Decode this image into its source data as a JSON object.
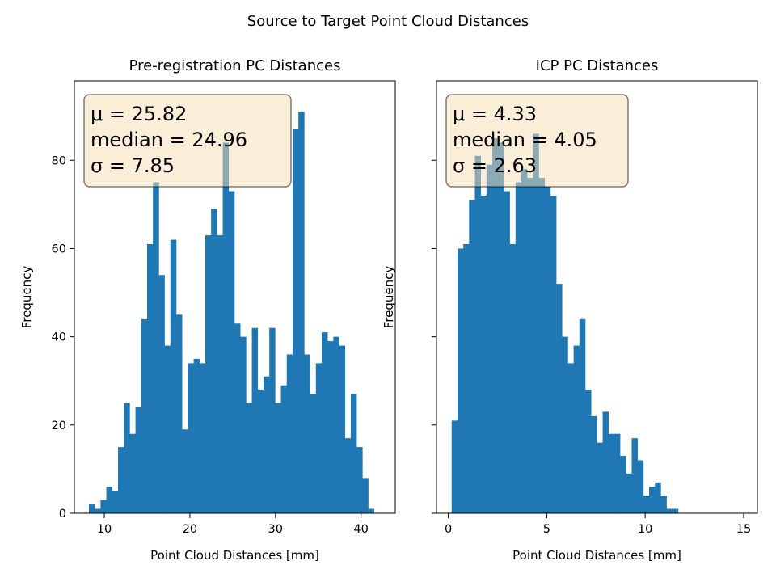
{
  "figure": {
    "suptitle": "Source to Target Point Cloud Distances"
  },
  "colors": {
    "bar": "#1f77b4",
    "stats_box_fill": "#f5deb3",
    "stats_box_edge": "#000000",
    "axes": "#000000",
    "background": "#ffffff"
  },
  "chart_data": [
    {
      "type": "bar",
      "title": "Pre-registration PC Distances",
      "xlabel": "Point Cloud Distances [mm]",
      "ylabel": "Frequency",
      "xlim": [
        6.5,
        44.0
      ],
      "ylim": [
        0,
        98
      ],
      "xticks": [
        10,
        20,
        30,
        40
      ],
      "yticks": [
        0,
        20,
        40,
        60,
        80
      ],
      "bin_start": 8.2,
      "bin_width": 0.68,
      "counts": [
        2,
        1,
        3,
        6,
        5,
        15,
        25,
        18,
        24,
        44,
        61,
        75,
        54,
        38,
        62,
        45,
        19,
        34,
        35,
        34,
        63,
        69,
        63,
        84,
        73,
        43,
        40,
        25,
        42,
        28,
        31,
        42,
        25,
        29,
        36,
        87,
        91,
        36,
        27,
        34,
        41,
        39,
        40,
        38,
        17,
        27,
        15,
        8,
        1
      ],
      "grid": false,
      "stats": {
        "mu_label": "μ = 25.82",
        "median_label": "median = 24.96",
        "sigma_label": "σ = 7.85"
      }
    },
    {
      "type": "bar",
      "title": "ICP PC Distances",
      "xlabel": "Point Cloud Distances [mm]",
      "ylabel": "Frequency",
      "xlim": [
        -0.6,
        15.7
      ],
      "ylim": [
        0,
        98
      ],
      "xticks": [
        0,
        5,
        10,
        15
      ],
      "yticks": [
        0,
        20,
        40,
        60,
        80
      ],
      "tick_labels_y_visible": false,
      "bin_start": 0.17,
      "bin_width": 0.295,
      "counts": [
        21,
        60,
        61,
        71,
        81,
        72,
        79,
        85,
        84,
        73,
        61,
        75,
        78,
        76,
        86,
        76,
        74,
        72,
        52,
        40,
        34,
        38,
        44,
        28,
        22,
        16,
        23,
        18,
        18,
        13,
        9,
        17,
        12,
        4,
        6,
        7,
        4,
        1,
        1,
        0,
        0,
        0,
        0,
        0,
        0,
        0,
        0,
        0,
        0,
        0
      ],
      "bar_color_series_note_removed": true,
      "grid": false,
      "stats": {
        "mu_label": "μ = 4.33",
        "median_label": "median = 4.05",
        "sigma_label": "σ = 2.63"
      }
    }
  ]
}
